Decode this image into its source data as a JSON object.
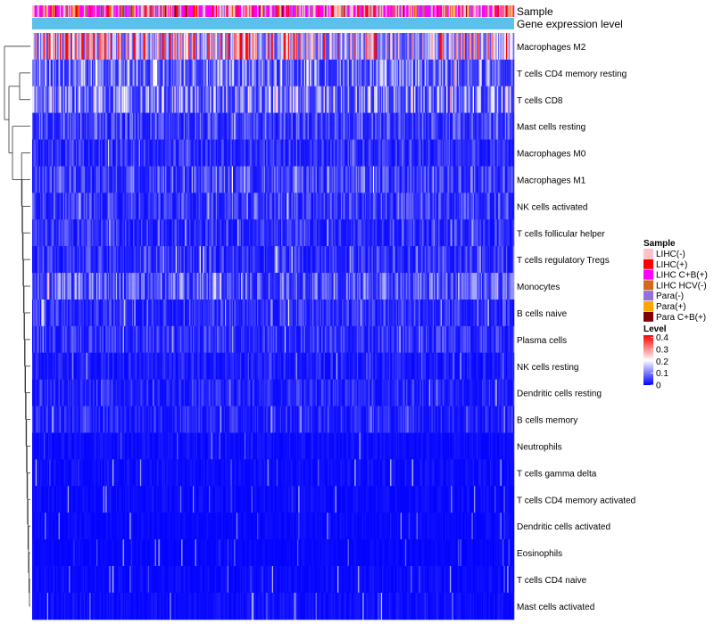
{
  "chart_data": {
    "type": "heatmap",
    "annotations": [
      {
        "name": "Sample",
        "kind": "categorical"
      },
      {
        "name": "Gene expression level",
        "kind": "continuous"
      }
    ],
    "rows": [
      {
        "label": "Macrophages M2",
        "mean_level": 0.26
      },
      {
        "label": "T cells CD4 memory resting",
        "mean_level": 0.12
      },
      {
        "label": "T cells CD8",
        "mean_level": 0.14
      },
      {
        "label": "Mast cells resting",
        "mean_level": 0.07
      },
      {
        "label": "Macrophages M0",
        "mean_level": 0.05
      },
      {
        "label": "Macrophages M1",
        "mean_level": 0.07
      },
      {
        "label": "NK cells activated",
        "mean_level": 0.06
      },
      {
        "label": "T cells follicular helper",
        "mean_level": 0.05
      },
      {
        "label": "T cells regulatory  Tregs",
        "mean_level": 0.05
      },
      {
        "label": "Monocytes",
        "mean_level": 0.09
      },
      {
        "label": "B cells naive",
        "mean_level": 0.05
      },
      {
        "label": "Plasma cells",
        "mean_level": 0.05
      },
      {
        "label": "NK cells resting",
        "mean_level": 0.03
      },
      {
        "label": "Dendritic cells resting",
        "mean_level": 0.04
      },
      {
        "label": "B cells memory",
        "mean_level": 0.04
      },
      {
        "label": "Neutrophils",
        "mean_level": 0.015
      },
      {
        "label": "T cells gamma delta",
        "mean_level": 0.015
      },
      {
        "label": "T cells CD4 memory activated",
        "mean_level": 0.012
      },
      {
        "label": "Dendritic cells activated",
        "mean_level": 0.01
      },
      {
        "label": "Eosinophils",
        "mean_level": 0.008
      },
      {
        "label": "T cells CD4 naive",
        "mean_level": 0.012
      },
      {
        "label": "Mast cells activated",
        "mean_level": 0.015
      }
    ],
    "legend": {
      "sample": {
        "title": "Sample",
        "entries": [
          {
            "label": "LIHC(-)",
            "color": "#ffc0cb"
          },
          {
            "label": "LIHC(+)",
            "color": "#ff0000"
          },
          {
            "label": "LIHC C+B(+)",
            "color": "#ff00ff"
          },
          {
            "label": "LIHC HCV(-)",
            "color": "#d2691e"
          },
          {
            "label": "Para(-)",
            "color": "#9370db"
          },
          {
            "label": "Para(+)",
            "color": "#ffa500"
          },
          {
            "label": "Para C+B(+)",
            "color": "#800000"
          }
        ]
      },
      "level": {
        "title": "Level",
        "ticks": [
          "0.4",
          "0.3",
          "0.2",
          "0.1",
          "0"
        ],
        "tick_values": [
          0.4,
          0.3,
          0.2,
          0.1,
          0
        ],
        "range": [
          0,
          0.42
        ],
        "colors": {
          "low": "#0000ff",
          "mid": "#ffffff",
          "high": "#ff0000"
        }
      }
    },
    "gene_expression_color": "#5bc0eb",
    "n_samples": 420
  }
}
